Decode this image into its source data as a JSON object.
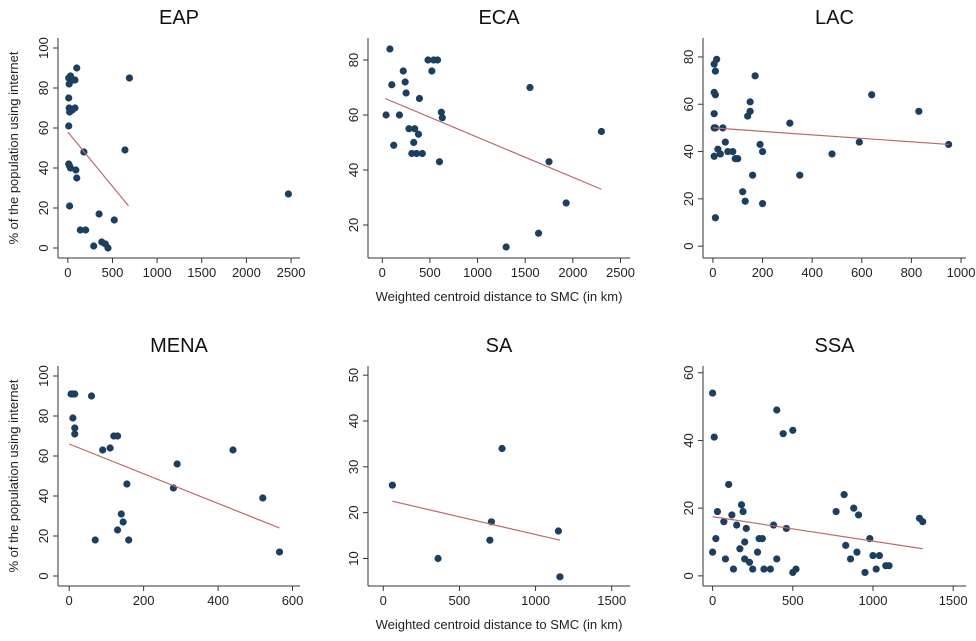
{
  "chart_data": [
    {
      "type": "scatter",
      "title": "EAP",
      "ylabel": "% of the population using internet",
      "color": "#1c3f5f",
      "x": [
        10,
        15,
        30,
        60,
        80,
        100,
        10,
        15,
        20,
        50,
        80,
        10,
        10,
        20,
        30,
        90,
        100,
        180,
        20,
        140,
        200,
        290,
        350,
        380,
        420,
        450,
        520,
        640,
        690,
        2470
      ],
      "values": [
        85,
        82,
        86,
        84,
        84,
        90,
        75,
        70,
        68,
        69,
        70,
        61,
        42,
        41,
        40,
        39,
        35,
        48,
        21,
        9,
        9,
        1,
        17,
        3,
        2,
        0,
        14,
        49,
        85,
        27
      ],
      "fit": {
        "x": [
          0,
          680
        ],
        "y": [
          58,
          21
        ],
        "color": "#b86b6b"
      },
      "xlim": [
        -110,
        2600
      ],
      "xticks": [
        0,
        500,
        1000,
        1500,
        2000,
        2500
      ],
      "ylim": [
        -5,
        105
      ],
      "yticks": [
        0,
        20,
        40,
        60,
        80,
        100
      ]
    },
    {
      "type": "scatter",
      "title": "ECA",
      "xlabel": "Weighted centroid distance to SMC (in km)",
      "color": "#1c3f5f",
      "x": [
        80,
        40,
        100,
        120,
        180,
        220,
        240,
        250,
        280,
        310,
        330,
        340,
        360,
        380,
        390,
        420,
        480,
        520,
        540,
        580,
        600,
        620,
        630,
        1300,
        1550,
        1640,
        1750,
        1930,
        2300
      ],
      "values": [
        84,
        60,
        71,
        49,
        60,
        76,
        72,
        68,
        55,
        46,
        50,
        55,
        46,
        53,
        66,
        46,
        80,
        76,
        80,
        80,
        43,
        61,
        59,
        12,
        70,
        17,
        43,
        28,
        54
      ],
      "fit": {
        "x": [
          30,
          2300
        ],
        "y": [
          66,
          33
        ],
        "color": "#b86b6b"
      },
      "xlim": [
        -150,
        2600
      ],
      "xticks": [
        0,
        500,
        1000,
        1500,
        2000,
        2500
      ],
      "ylim": [
        8,
        88
      ],
      "yticks": [
        20,
        40,
        60,
        80
      ]
    },
    {
      "type": "scatter",
      "title": "LAC",
      "color": "#1c3f5f",
      "x": [
        5,
        10,
        15,
        5,
        10,
        5,
        10,
        5,
        5,
        10,
        20,
        30,
        40,
        50,
        60,
        80,
        90,
        100,
        120,
        130,
        140,
        150,
        150,
        160,
        170,
        190,
        200,
        200,
        310,
        350,
        480,
        590,
        640,
        830,
        950
      ],
      "values": [
        77,
        74,
        79,
        65,
        64,
        56,
        50,
        50,
        38,
        12,
        41,
        39,
        50,
        44,
        40,
        40,
        37,
        37,
        23,
        19,
        55,
        61,
        57,
        30,
        72,
        43,
        40,
        18,
        52,
        30,
        39,
        44,
        64,
        57,
        43
      ],
      "fit": {
        "x": [
          0,
          950
        ],
        "y": [
          50,
          43
        ],
        "color": "#b86b6b"
      },
      "xlim": [
        -40,
        1020
      ],
      "xticks": [
        0,
        200,
        400,
        600,
        800,
        1000
      ],
      "ylim": [
        -5,
        88
      ],
      "yticks": [
        0,
        20,
        40,
        60,
        80
      ]
    },
    {
      "type": "scatter",
      "title": "MENA",
      "ylabel": "% of the population using internet",
      "color": "#1c3f5f",
      "x": [
        5,
        10,
        15,
        10,
        15,
        15,
        60,
        70,
        90,
        110,
        120,
        130,
        130,
        140,
        145,
        155,
        160,
        280,
        290,
        440,
        520,
        565
      ],
      "values": [
        91,
        91,
        91,
        79,
        74,
        71,
        90,
        18,
        63,
        64,
        70,
        70,
        23,
        31,
        27,
        46,
        18,
        44,
        56,
        63,
        39,
        12
      ],
      "fit": {
        "x": [
          0,
          565
        ],
        "y": [
          66,
          24
        ],
        "color": "#b86b6b"
      },
      "xlim": [
        -30,
        620
      ],
      "xticks": [
        0,
        200,
        400,
        600
      ],
      "ylim": [
        -5,
        105
      ],
      "yticks": [
        0,
        20,
        40,
        60,
        80,
        100
      ]
    },
    {
      "type": "scatter",
      "title": "SA",
      "xlabel": "Weighted centroid distance to SMC (in km)",
      "color": "#1c3f5f",
      "x": [
        60,
        360,
        700,
        710,
        780,
        1150,
        1160
      ],
      "values": [
        26,
        10,
        14,
        18,
        34,
        16,
        6
      ],
      "fit": {
        "x": [
          60,
          1160
        ],
        "y": [
          22.5,
          14
        ],
        "color": "#b86b6b"
      },
      "xlim": [
        -100,
        1620
      ],
      "xticks": [
        0,
        500,
        1000,
        1500
      ],
      "ylim": [
        4,
        52
      ],
      "yticks": [
        10,
        20,
        30,
        40,
        50
      ]
    },
    {
      "type": "scatter",
      "title": "SSA",
      "color": "#1c3f5f",
      "x": [
        0,
        10,
        0,
        20,
        30,
        70,
        80,
        100,
        120,
        130,
        150,
        170,
        180,
        190,
        200,
        200,
        210,
        230,
        250,
        280,
        290,
        310,
        320,
        360,
        380,
        400,
        400,
        440,
        460,
        500,
        500,
        520,
        770,
        820,
        830,
        860,
        880,
        900,
        910,
        950,
        980,
        1000,
        1020,
        1040,
        1080,
        1100,
        1290,
        1310
      ],
      "values": [
        54,
        41,
        7,
        11,
        19,
        16,
        5,
        27,
        18,
        2,
        15,
        8,
        21,
        19,
        10,
        5,
        14,
        4,
        2,
        7,
        11,
        11,
        2,
        2,
        15,
        49,
        5,
        42,
        14,
        43,
        1,
        2,
        19,
        24,
        9,
        5,
        20,
        7,
        18,
        1,
        11,
        6,
        2,
        6,
        3,
        3,
        17,
        16
      ],
      "fit": {
        "x": [
          0,
          1310
        ],
        "y": [
          17.5,
          8
        ],
        "color": "#b86b6b"
      },
      "xlim": [
        -60,
        1580
      ],
      "xticks": [
        0,
        500,
        1000,
        1500
      ],
      "ylim": [
        -3,
        62
      ],
      "yticks": [
        0,
        20,
        40,
        60
      ]
    }
  ]
}
